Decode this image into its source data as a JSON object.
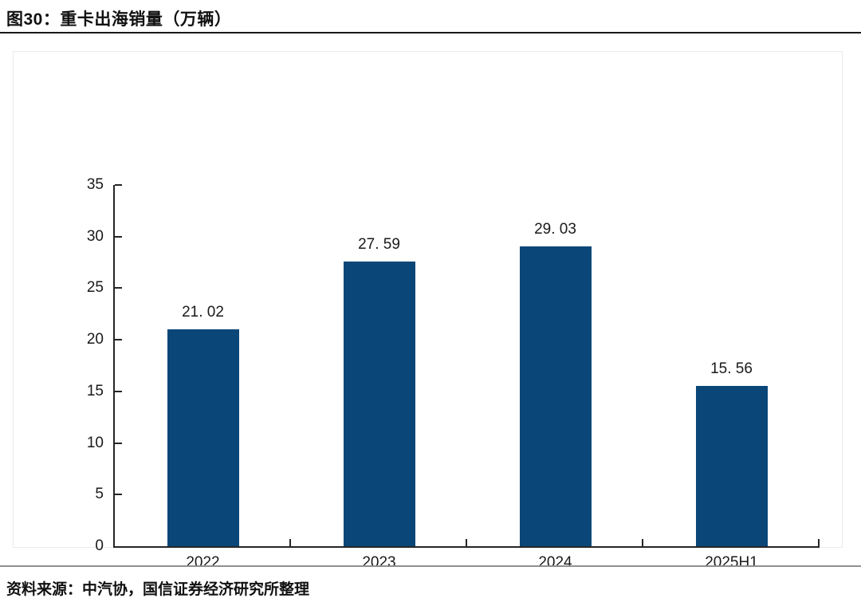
{
  "page": {
    "title": "图30：重卡出海销量（万辆）",
    "source_note": "资料来源：中汽协，国信证券经济研究所整理"
  },
  "colors": {
    "bar": "#0a4778",
    "axis": "#262626",
    "text": "#1a1a1a",
    "title_divider": "#1a1a1a",
    "footer_divider": "#8f8f8f",
    "card_border": "#ebebeb"
  },
  "chart_data": {
    "type": "bar",
    "title": "重卡出海销量（万辆）",
    "categories": [
      "2022",
      "2023",
      "2024",
      "2025H1"
    ],
    "values": [
      21.02,
      27.59,
      29.03,
      15.56
    ],
    "value_labels": [
      "21. 02",
      "27. 59",
      "29. 03",
      "15. 56"
    ],
    "xlabel": "",
    "ylabel": "",
    "ylim": [
      0,
      35
    ],
    "yticks": [
      0,
      5,
      10,
      15,
      20,
      25,
      30,
      35
    ],
    "grid": false,
    "legend": false,
    "bar_color": "#0a4778",
    "tick_style": "inside"
  }
}
